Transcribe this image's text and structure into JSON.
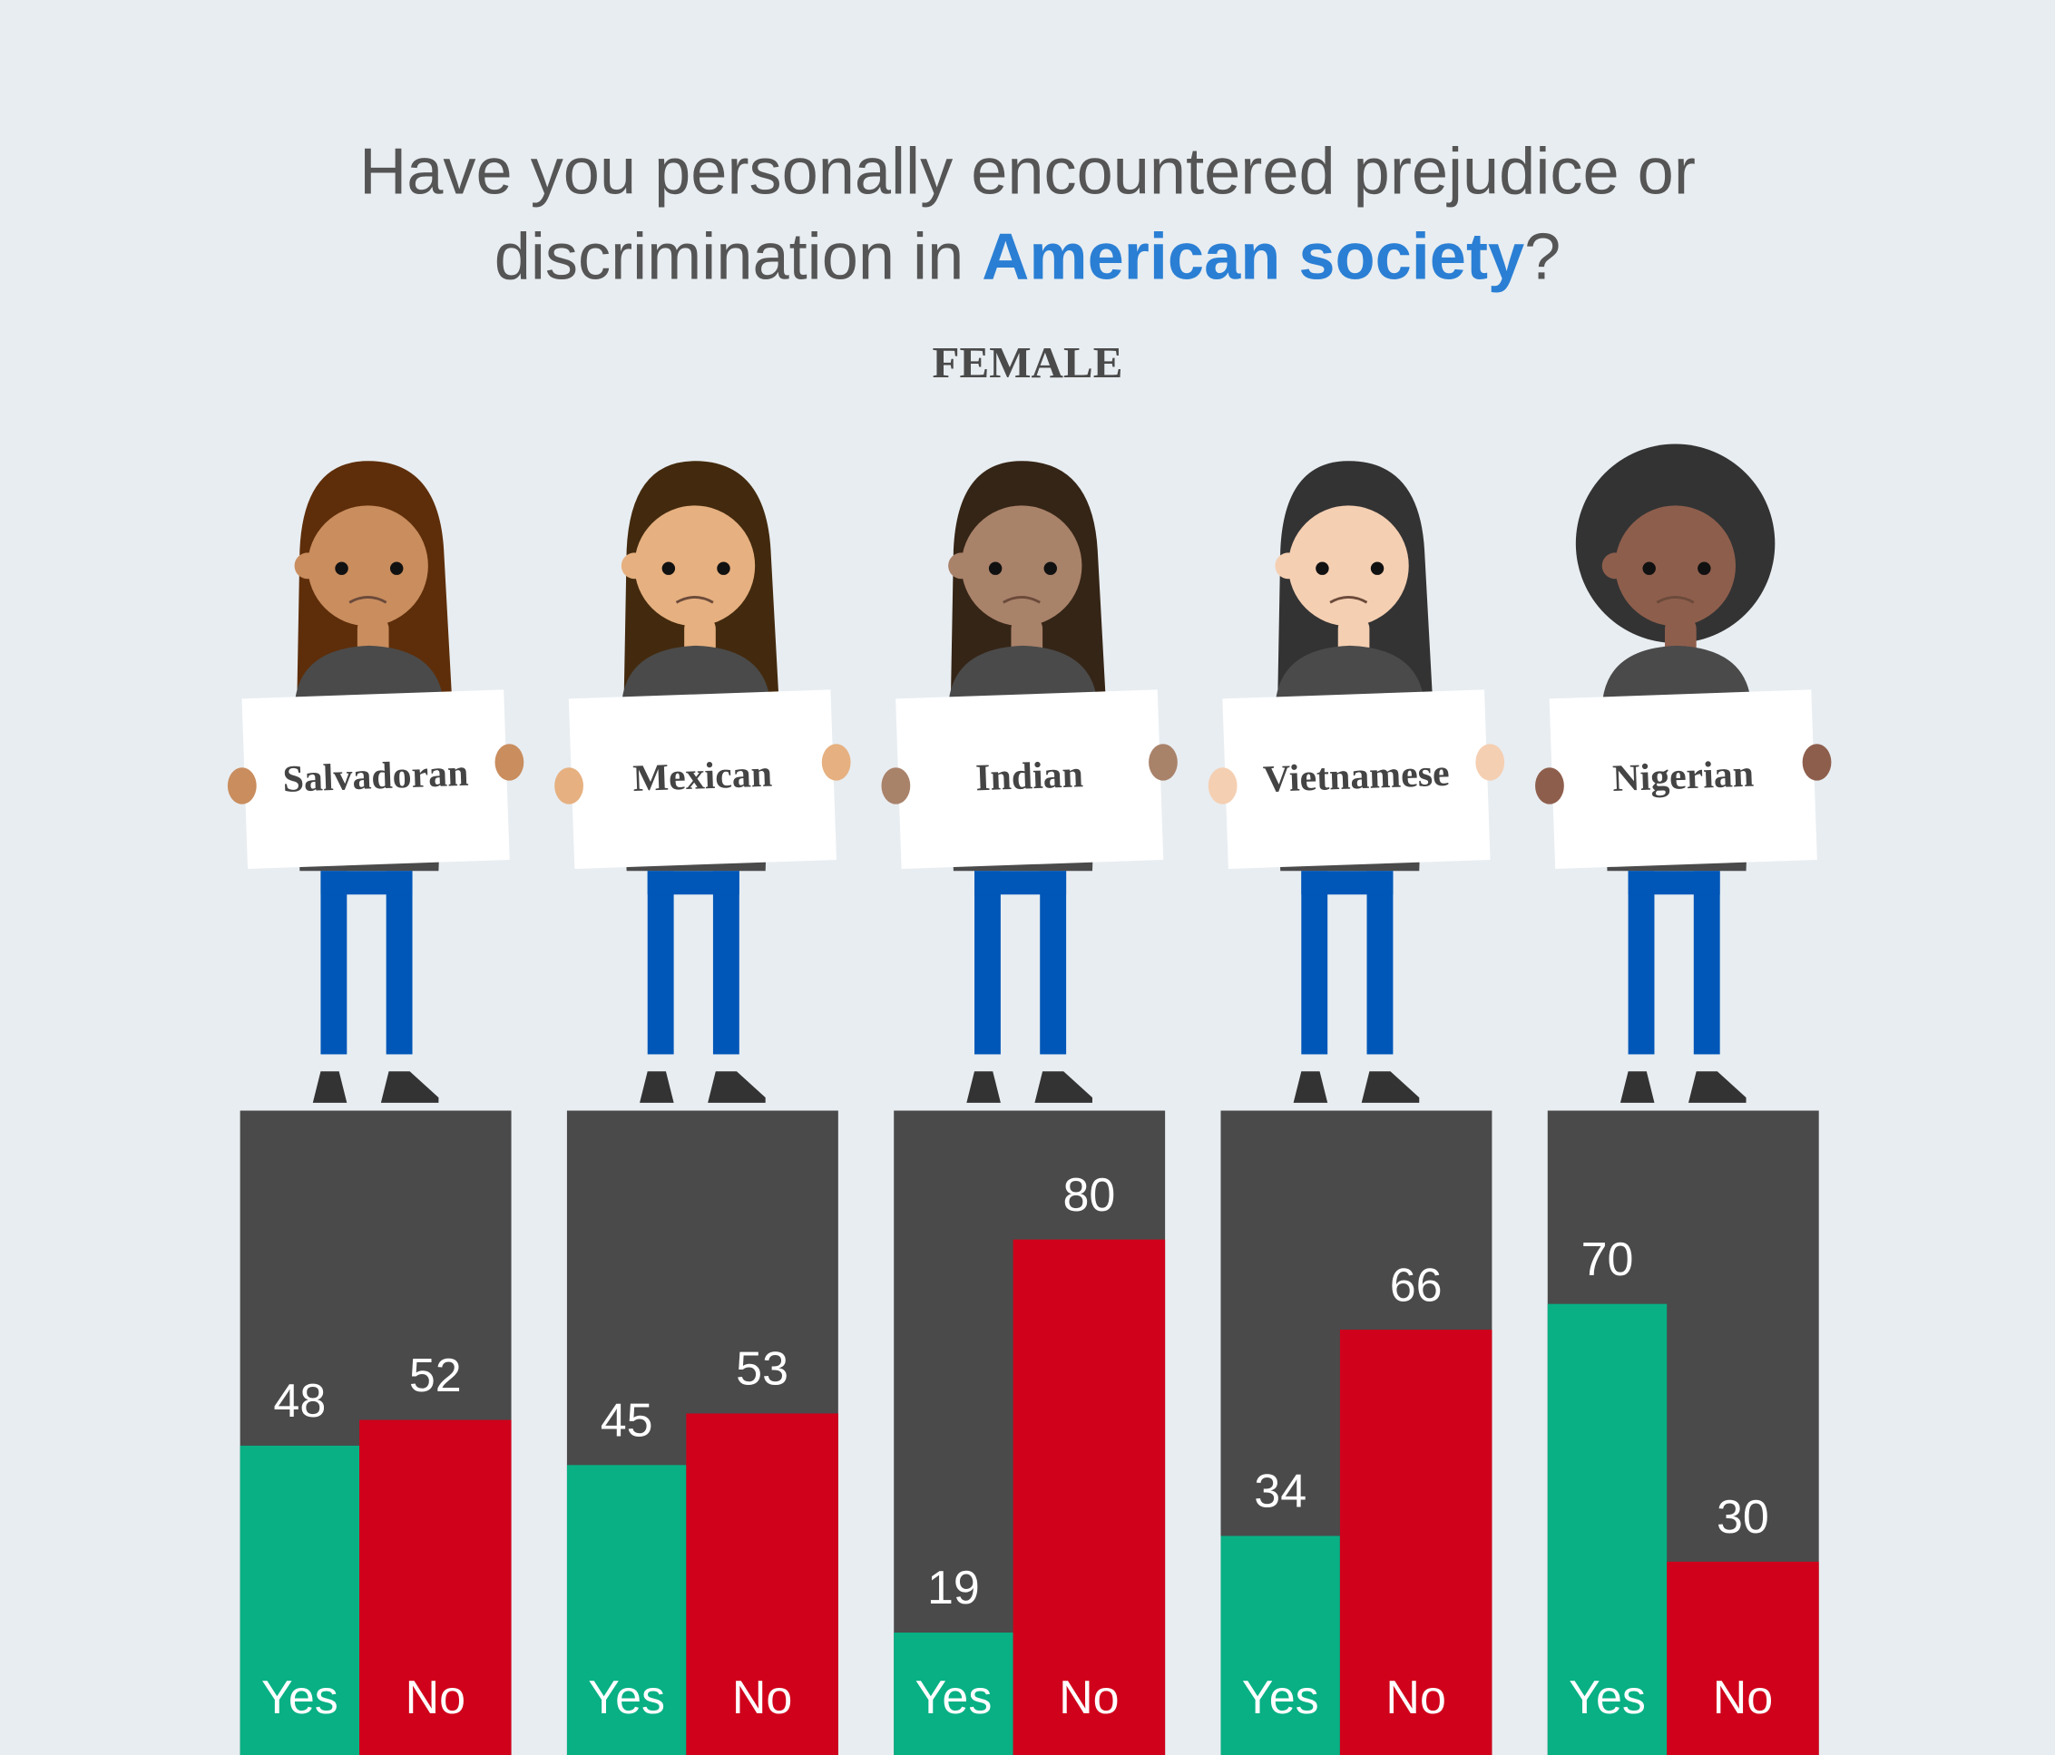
{
  "chart_data": {
    "type": "bar",
    "title": {
      "line1": "Have you personally encountered prejudice or",
      "line2": "discrimination in",
      "highlight": "American society",
      "end": "?"
    },
    "subtitle": "FEMALE",
    "categories": [
      "Salvadoran",
      "Mexican",
      "Indian",
      "Vietnamese",
      "Nigerian"
    ],
    "series": [
      {
        "name": "Yes",
        "color": "#08b084",
        "values": [
          48,
          45,
          19,
          34,
          70
        ]
      },
      {
        "name": "No",
        "color": "#d0021b",
        "values": [
          52,
          53,
          80,
          66,
          30
        ]
      }
    ],
    "ylim": [
      0,
      100
    ]
  }
}
